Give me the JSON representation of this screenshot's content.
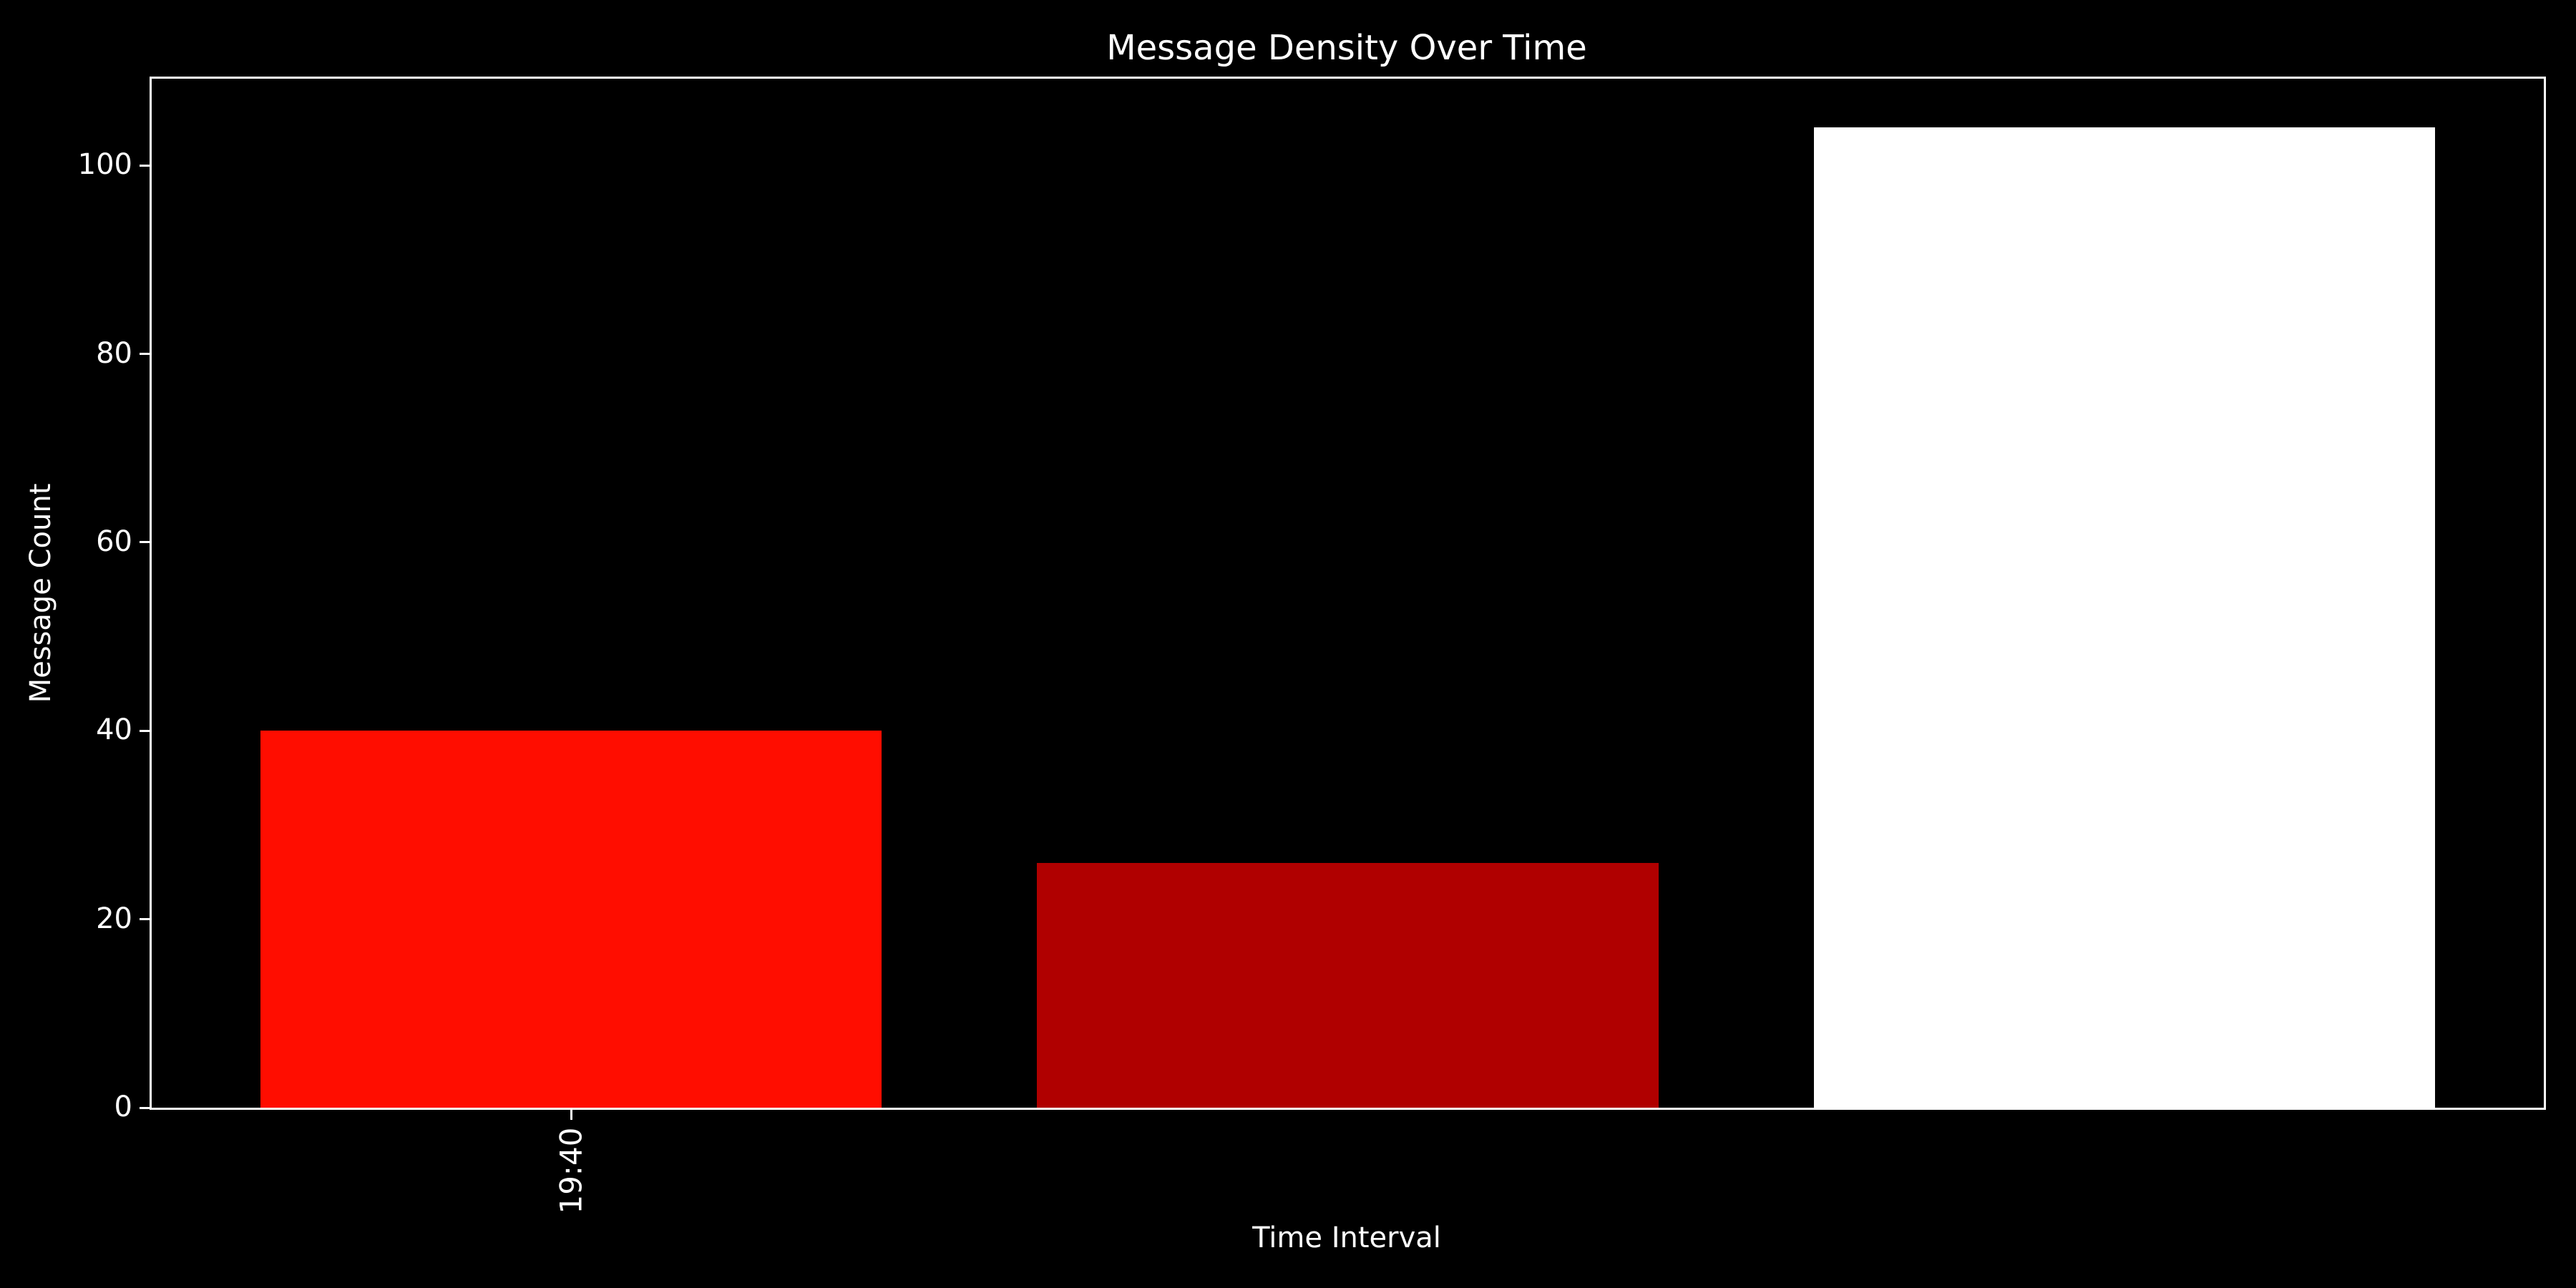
{
  "chart_data": {
    "type": "bar",
    "title": "Message Density Over Time",
    "xlabel": "Time Interval",
    "ylabel": "Message Count",
    "categories": [
      "19:40",
      "",
      ""
    ],
    "bars": [
      {
        "x": 0,
        "label": "19:40",
        "value": 40,
        "color": "#ff0d00"
      },
      {
        "x": 1,
        "label": "",
        "value": 26,
        "color": "#b00000"
      },
      {
        "x": 2,
        "label": "",
        "value": 104,
        "color": "#ffffff"
      }
    ],
    "x_tick_labels": [
      {
        "x": 0,
        "label": "19:40"
      }
    ],
    "y_ticks": [
      0,
      20,
      40,
      60,
      80,
      100
    ],
    "xlim": [
      -0.54,
      2.54
    ],
    "ylim": [
      0,
      109.2
    ],
    "bar_width": 0.8,
    "background_color": "#000000",
    "foreground_color": "#ffffff",
    "grid": "off",
    "legend": "none"
  }
}
